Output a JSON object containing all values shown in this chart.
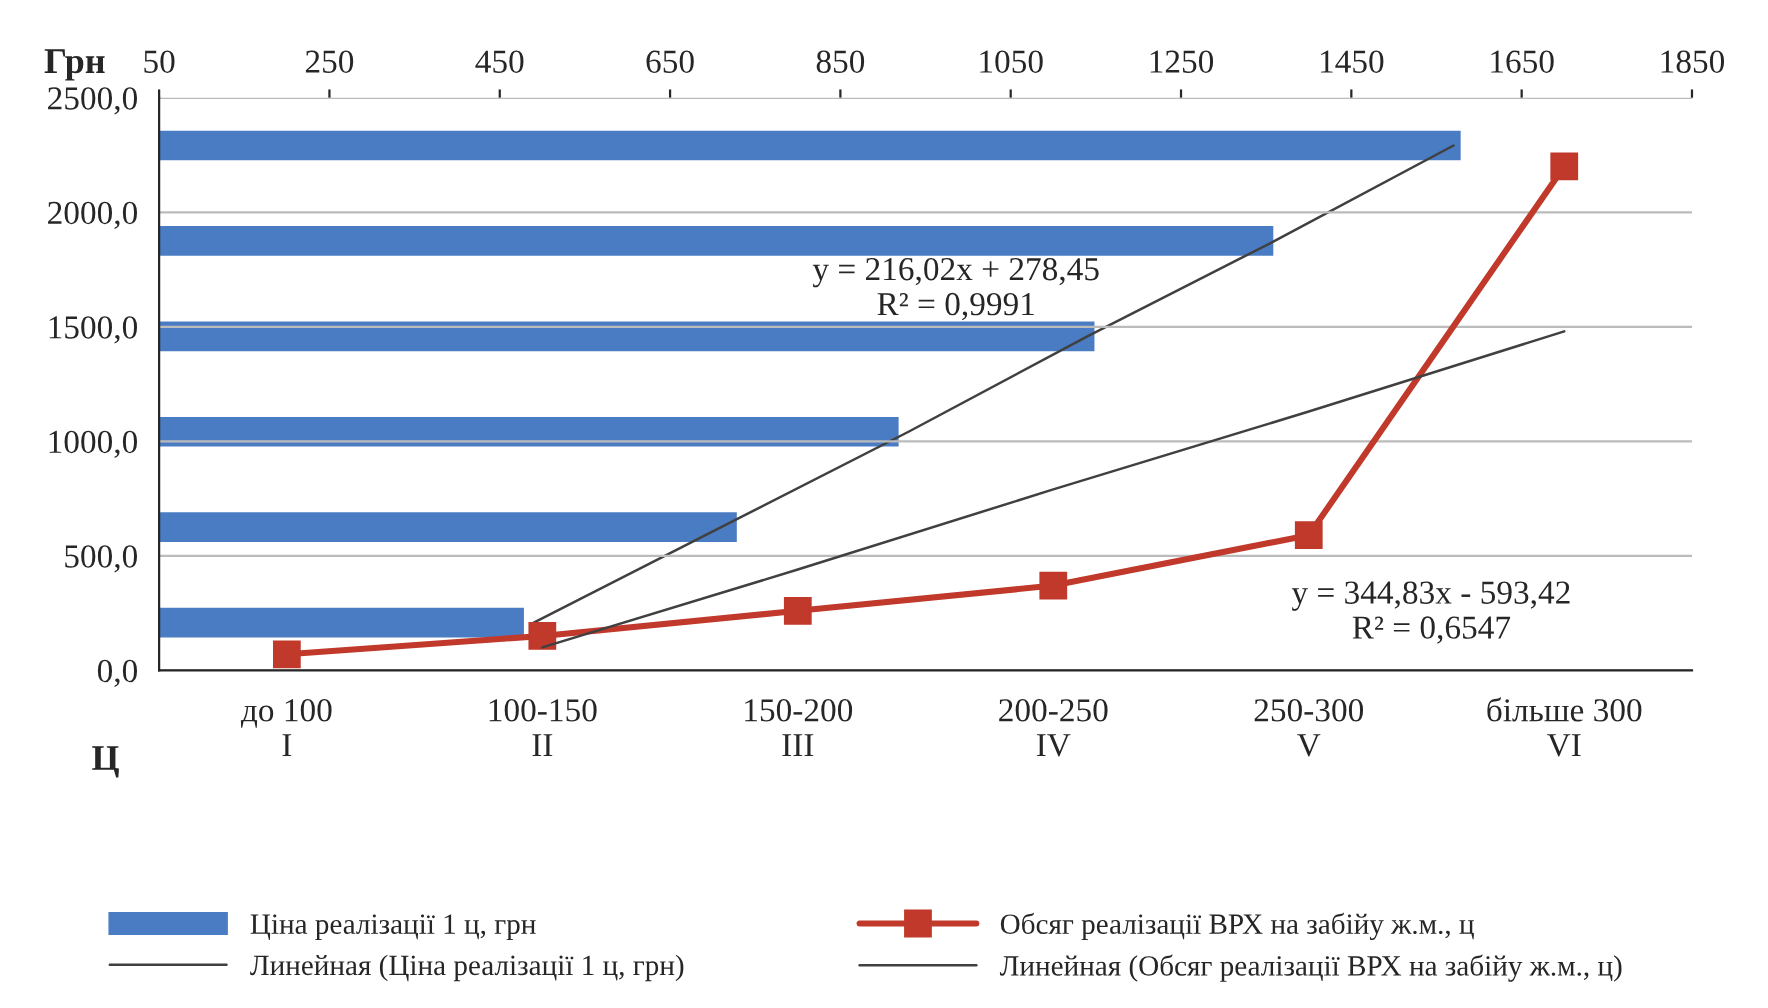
{
  "chart_data": [
    {
      "type": "bar",
      "orientation": "horizontal",
      "categories": [
        null,
        null,
        null,
        null,
        null,
        null
      ],
      "xlim": [
        50,
        1850
      ],
      "xticks": [
        50,
        250,
        450,
        650,
        850,
        1050,
        1250,
        1450,
        1650,
        1850
      ],
      "tick_labels": "x",
      "legend": "bottom",
      "annotations": [
        "y = 216,02x + 278,45\nR² = 0,9991"
      ],
      "series": [
        {
          "name": "Ціна реалізації 1 ц, грн",
          "type": "bar",
          "color": "#4a7cc4",
          "values": [
            1580,
            1360,
            1150,
            920,
            730,
            480
          ]
        },
        {
          "name": "Линейная (Ціна реалізації 1 ц, грн)",
          "type": "line",
          "color": "#404040",
          "values": [
            1570,
            1360,
            1140,
            930,
            710,
            490
          ]
        }
      ]
    },
    {
      "type": "line",
      "xlabel": "Ц",
      "ylabel": "Грн",
      "categories": [
        "до 100\nI",
        "100-150\nII",
        "150-200\nIII",
        "200-250\nIV",
        "250-300\nV",
        "більше 300\nVI"
      ],
      "ylim": [
        0,
        2500
      ],
      "yticks": [
        {
          "value": 0,
          "label": "0,0"
        },
        {
          "value": 500,
          "label": "500,0"
        },
        {
          "value": 1000,
          "label": "1000,0"
        },
        {
          "value": 1500,
          "label": "1500,0"
        },
        {
          "value": 2000,
          "label": "2000,0"
        },
        {
          "value": 2500,
          "label": "2500,0"
        }
      ],
      "grid": "y",
      "legend": "bottom",
      "annotations": [
        "y = 344,83x - 593,42\nR² = 0,6547"
      ],
      "series": [
        {
          "name": "Обсяг реалізації ВРХ на забійу ж.м., ц",
          "marker": "square",
          "color": "#c0392b",
          "values": [
            70,
            150,
            260,
            370,
            590,
            2200
          ]
        },
        {
          "name": "Линейная (Обсяг реалізації ВРХ на забійу ж.м., ц)",
          "color": "#404040",
          "values": [
            null,
            100,
            440,
            790,
            1130,
            1480
          ]
        }
      ]
    }
  ]
}
